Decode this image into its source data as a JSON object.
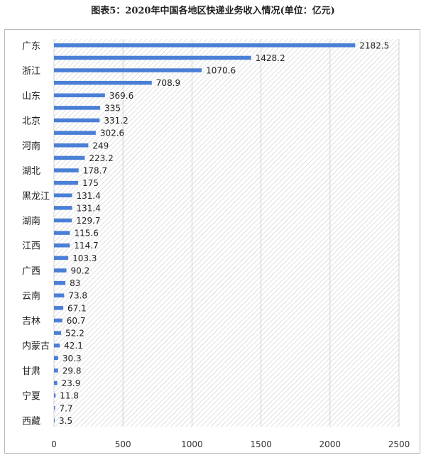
{
  "chart_data": {
    "type": "bar",
    "orientation": "horizontal",
    "title": "图表5：2020年中国各地区快递业务收入情况(单位：亿元)",
    "categories": [
      "广东",
      "",
      "浙江",
      "",
      "山东",
      "",
      "北京",
      "",
      "河南",
      "",
      "湖北",
      "",
      "黑龙江",
      "",
      "湖南",
      "",
      "江西",
      "",
      "广西",
      "",
      "云南",
      "",
      "吉林",
      "",
      "内蒙古",
      "",
      "甘肃",
      "",
      "宁夏",
      "",
      "西藏"
    ],
    "values": [
      2182.5,
      1428.2,
      1070.6,
      708.9,
      369.6,
      335,
      331.2,
      302.6,
      249,
      223.2,
      178.7,
      175,
      131.4,
      131.4,
      129.7,
      115.6,
      114.7,
      103.3,
      90.2,
      83,
      73.8,
      67.1,
      60.7,
      52.2,
      42.1,
      30.3,
      29.8,
      23.9,
      11.8,
      7.7,
      3.5
    ],
    "value_labels": [
      "2182.5",
      "1428.2",
      "1070.6",
      "708.9",
      "369.6",
      "335",
      "331.2",
      "302.6",
      "249",
      "223.2",
      "178.7",
      "175",
      "131.4",
      "131.4",
      "129.7",
      "115.6",
      "114.7",
      "103.3",
      "90.2",
      "83",
      "73.8",
      "67.1",
      "60.7",
      "52.2",
      "42.1",
      "30.3",
      "29.8",
      "23.9",
      "11.8",
      "7.7",
      "3.5"
    ],
    "xlim": [
      0,
      2500
    ],
    "x_ticks": [
      "0",
      "500",
      "1000",
      "1500",
      "2000",
      "2500"
    ],
    "bar_color": "#4a7fd6",
    "grid": "vertical",
    "xlabel": "",
    "ylabel": ""
  }
}
